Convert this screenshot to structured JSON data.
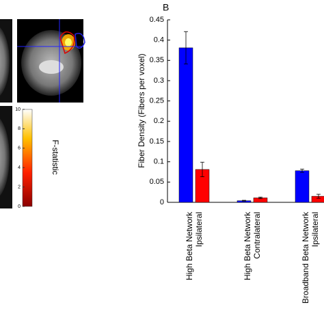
{
  "panel_label": "B",
  "colorbar": {
    "label": "F-statistic",
    "lim": [
      0,
      10
    ],
    "ticks": [
      0,
      2,
      4,
      6,
      8,
      10
    ]
  },
  "chart_data": {
    "type": "bar",
    "ylabel": "Fiber Density (Fibers per voxel)",
    "categories": [
      [
        "High Beta Network",
        "Ipsilateral"
      ],
      [
        "High Beta Network",
        "Contralateral"
      ],
      [
        "Broadband Beta Network",
        "Ipsilateral"
      ]
    ],
    "series": [
      {
        "color": "#0000ff",
        "values": [
          0.381,
          0.004,
          0.078
        ],
        "errors": [
          0.04,
          0.001,
          0.004
        ]
      },
      {
        "color": "#ff0000",
        "values": [
          0.081,
          0.011,
          0.015
        ],
        "errors": [
          0.018,
          0.002,
          0.005
        ]
      }
    ],
    "ylim": [
      0,
      0.45
    ],
    "yticks": [
      0,
      0.05,
      0.1,
      0.15,
      0.2,
      0.25,
      0.3,
      0.35,
      0.4,
      0.45
    ]
  }
}
